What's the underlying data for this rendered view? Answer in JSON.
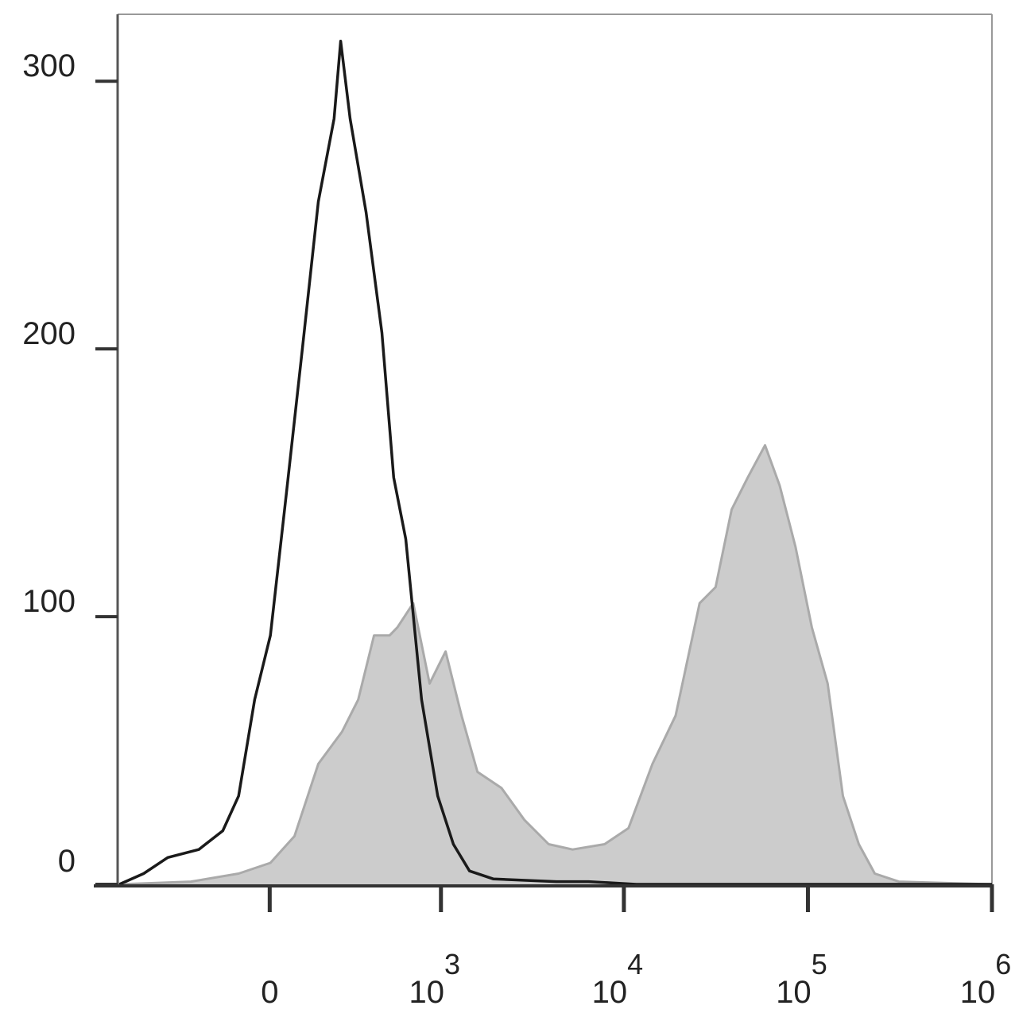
{
  "chart_data": {
    "type": "histogram-overlay",
    "xscale": "arcsinh",
    "xscale_cofactor": 238,
    "xlim": [
      -780,
      1000000
    ],
    "xticks": [
      0,
      {
        "value": 1000,
        "label": "10",
        "exponent": "3"
      },
      {
        "value": 10000,
        "label": "10",
        "exponent": "4"
      },
      {
        "value": 100000,
        "label": "10",
        "exponent": "5"
      },
      {
        "value": 1000000,
        "label": "10",
        "exponent": "6"
      }
    ],
    "ylim": [
      0,
      325
    ],
    "yticks": [
      0,
      100,
      200,
      300
    ],
    "series": [
      {
        "color": "#aaaaaa",
        "fill": "#cccccc",
        "x": [
          -762,
          -275,
          -95,
          2,
          75,
          154,
          246,
          321,
          407,
          507,
          564,
          697,
          864,
          1061,
          1302,
          1592,
          2156,
          2880,
          3900,
          5260,
          7850,
          10600,
          14300,
          19100,
          25800,
          31500,
          38500,
          47100,
          58500,
          70200,
          85700,
          105000,
          128000,
          155000,
          189000,
          231000,
          312000,
          1000000
        ],
        "values": [
          0,
          1,
          4,
          8,
          18,
          45,
          57,
          69,
          93,
          93,
          96,
          105,
          75,
          87,
          63,
          42,
          36,
          24,
          15,
          13,
          15,
          21,
          45,
          63,
          105,
          111,
          140,
          152,
          164,
          149,
          126,
          96,
          75,
          33,
          15,
          4,
          1,
          0
        ]
      },
      {
        "color": "#1a1a1a",
        "x": [
          -762,
          -552,
          -393,
          -240,
          -148,
          -95,
          -45,
          2,
          50,
          100,
          154,
          213,
          240,
          282,
          362,
          455,
          536,
          631,
          778,
          959,
          1173,
          1440,
          1949,
          4300,
          6430,
          11700,
          1000000
        ],
        "values": [
          0,
          4,
          10,
          13,
          20,
          33,
          69,
          93,
          146,
          200,
          255,
          286,
          315,
          286,
          251,
          206,
          152,
          129,
          69,
          33,
          15,
          5,
          2,
          1,
          1,
          0,
          0
        ]
      }
    ]
  }
}
